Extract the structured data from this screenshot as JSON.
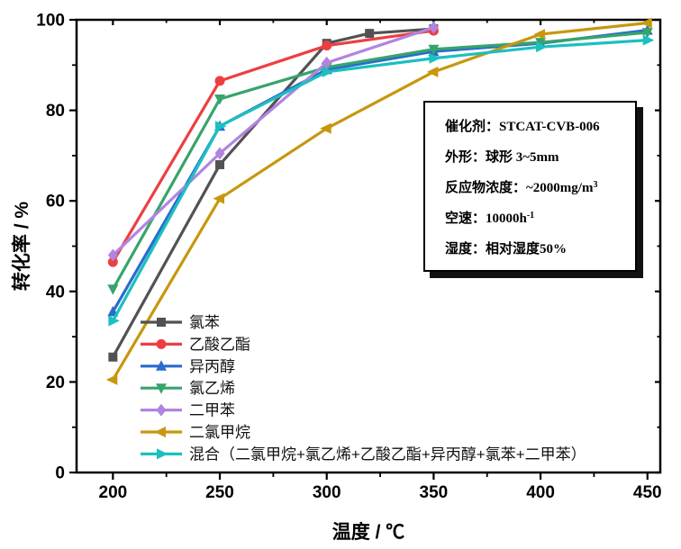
{
  "chart_data": {
    "type": "line",
    "title": "",
    "xlabel": "温度 / ℃",
    "ylabel": "转化率 / %",
    "xlim": [
      183,
      456
    ],
    "ylim": [
      0,
      100
    ],
    "x_ticks": [
      200,
      250,
      300,
      350,
      400,
      450
    ],
    "x_minor_ticks": [
      225,
      275,
      325,
      375,
      425
    ],
    "y_ticks": [
      0,
      20,
      40,
      60,
      80,
      100
    ],
    "y_minor_ticks": [
      10,
      30,
      50,
      70,
      90
    ],
    "grid": false,
    "legend_position": "inside-bottom-left",
    "series": [
      {
        "id": "chlorobenzene",
        "name": "氯苯",
        "color": "#525252",
        "marker": "square",
        "x": [
          200,
          250,
          300,
          320,
          350
        ],
        "y": [
          25.5,
          68,
          94.8,
          97,
          98
        ]
      },
      {
        "id": "ethyl-acetate",
        "name": "乙酸乙酯",
        "color": "#ec3f42",
        "marker": "circle",
        "x": [
          200,
          250,
          300,
          350
        ],
        "y": [
          46.5,
          86.5,
          94.3,
          97.6
        ]
      },
      {
        "id": "isopropanol",
        "name": "异丙醇",
        "color": "#2a6bcf",
        "marker": "triangle-up",
        "x": [
          200,
          250,
          300,
          350,
          400,
          450
        ],
        "y": [
          35.5,
          76.5,
          89,
          93,
          94.8,
          97.7
        ]
      },
      {
        "id": "vinyl-chloride",
        "name": "氯乙烯",
        "color": "#37a46c",
        "marker": "triangle-down",
        "x": [
          200,
          250,
          300,
          350,
          400,
          450
        ],
        "y": [
          40.5,
          82.5,
          89.5,
          93.5,
          95,
          97.2
        ]
      },
      {
        "id": "xylene",
        "name": "二甲苯",
        "color": "#b184e1",
        "marker": "diamond",
        "x": [
          200,
          250,
          300,
          350
        ],
        "y": [
          48,
          70.5,
          90.5,
          98.3
        ]
      },
      {
        "id": "dichloromethane",
        "name": "二氯甲烷",
        "color": "#c7970e",
        "marker": "triangle-left",
        "x": [
          200,
          250,
          300,
          350,
          400,
          450
        ],
        "y": [
          20.5,
          60.5,
          76,
          88.5,
          96.8,
          99.3
        ]
      },
      {
        "id": "voc-mixture",
        "name": "混合（二氯甲烷+氯乙烯+乙酸乙酯+异丙醇+氯苯+二甲苯）",
        "color": "#1bc0bf",
        "marker": "triangle-right",
        "x": [
          200,
          250,
          300,
          350,
          400,
          450
        ],
        "y": [
          33.5,
          76.5,
          88.5,
          91.5,
          94,
          95.5
        ]
      }
    ]
  },
  "info_box": {
    "lines": [
      {
        "text": "催化剂：STCAT-CVB-006",
        "sup": ""
      },
      {
        "text": "外形：球形 3~5mm",
        "sup": ""
      },
      {
        "text": "反应物浓度：~2000mg/m",
        "sup": "3"
      },
      {
        "text": "空速：10000h",
        "sup": "-1"
      },
      {
        "text": "湿度：相对湿度50%",
        "sup": ""
      }
    ]
  }
}
